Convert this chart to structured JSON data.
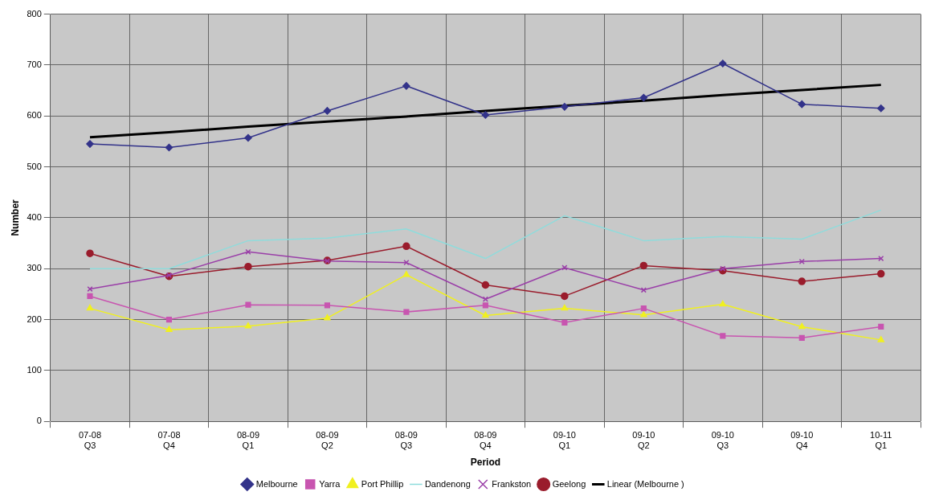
{
  "chart_data": {
    "type": "line",
    "xlabel": "Period",
    "ylabel": "Number",
    "categories": [
      "07-08\nQ3",
      "07-08\nQ4",
      "08-09\nQ1",
      "08-09\nQ2",
      "08-09\nQ3",
      "08-09\nQ4",
      "09-10\nQ1",
      "09-10\nQ2",
      "09-10\nQ3",
      "09-10\nQ4",
      "10-11\nQ1"
    ],
    "series": [
      {
        "name": "Melbourne",
        "color": "#33338a",
        "marker": "diamond",
        "values": [
          545,
          538,
          557,
          610,
          659,
          602,
          618,
          636,
          703,
          623,
          615
        ]
      },
      {
        "name": "Yarra",
        "color": "#c855b0",
        "marker": "square",
        "values": [
          246,
          200,
          229,
          228,
          215,
          228,
          194,
          222,
          168,
          164,
          186
        ]
      },
      {
        "name": "Port Phillip",
        "color": "#f0f020",
        "marker": "triangle",
        "values": [
          222,
          180,
          187,
          203,
          288,
          208,
          222,
          209,
          230,
          186,
          160
        ]
      },
      {
        "name": "Dandenong",
        "color": "#8fdcdc",
        "marker": "none",
        "values": [
          300,
          300,
          355,
          360,
          378,
          320,
          404,
          355,
          363,
          358,
          415
        ]
      },
      {
        "name": "Frankston",
        "color": "#9a3fa8",
        "marker": "cross",
        "values": [
          260,
          287,
          333,
          315,
          312,
          240,
          302,
          258,
          300,
          314,
          320
        ]
      },
      {
        "name": "Geelong",
        "color": "#9a1c2c",
        "marker": "circle",
        "values": [
          330,
          285,
          304,
          316,
          344,
          268,
          246,
          306,
          296,
          275,
          290
        ]
      },
      {
        "name": "Linear (Melbourne )",
        "color": "#000000",
        "marker": "none",
        "values": [
          558,
          568,
          579,
          589,
          599,
          610,
          620,
          630,
          641,
          651,
          661
        ]
      }
    ],
    "ylim": [
      0,
      800
    ],
    "yticks": [
      0,
      100,
      200,
      300,
      400,
      500,
      600,
      700,
      800
    ],
    "grid": true,
    "legend": "bottom"
  }
}
